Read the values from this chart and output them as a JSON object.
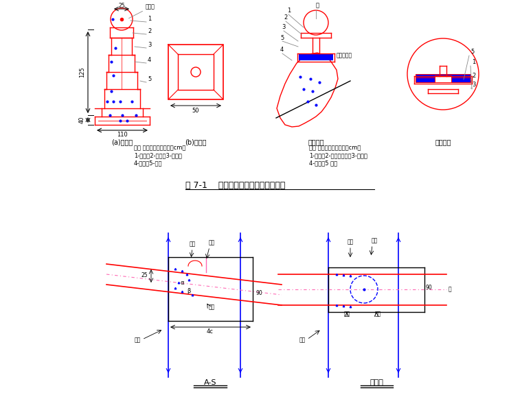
{
  "title": "图 7-1    洞外测量控制点观测墩结构图",
  "bg_color": "#ffffff",
  "red": "#ff0000",
  "blue": "#0000ff",
  "gray": "#888888",
  "black": "#000000",
  "label_a": "(a)立面图",
  "label_b": "(b)平面图",
  "label_c": "剖面示图",
  "label_d": "甲大样图",
  "legend1_line1": "图中 混凝土标段（单位：cm）",
  "legend1_line2": "1-垫心；2-托盘；3-托身；",
  "legend1_line3": "4-角筋；5-底盘",
  "legend2_line1": "图外 墙壁土标段（单位：cm）",
  "legend2_line2": "1-垫盘；2-世测大孔环；3-一号；",
  "legend2_line3": "4-钢筋；5 脚桩",
  "dim_25": "25",
  "dim_125": "125",
  "dim_40": "40",
  "dim_110": "110",
  "dim_50": "50",
  "label_bottom1": "A-S",
  "label_bottom2": "中匝图",
  "note_top": "见详图"
}
